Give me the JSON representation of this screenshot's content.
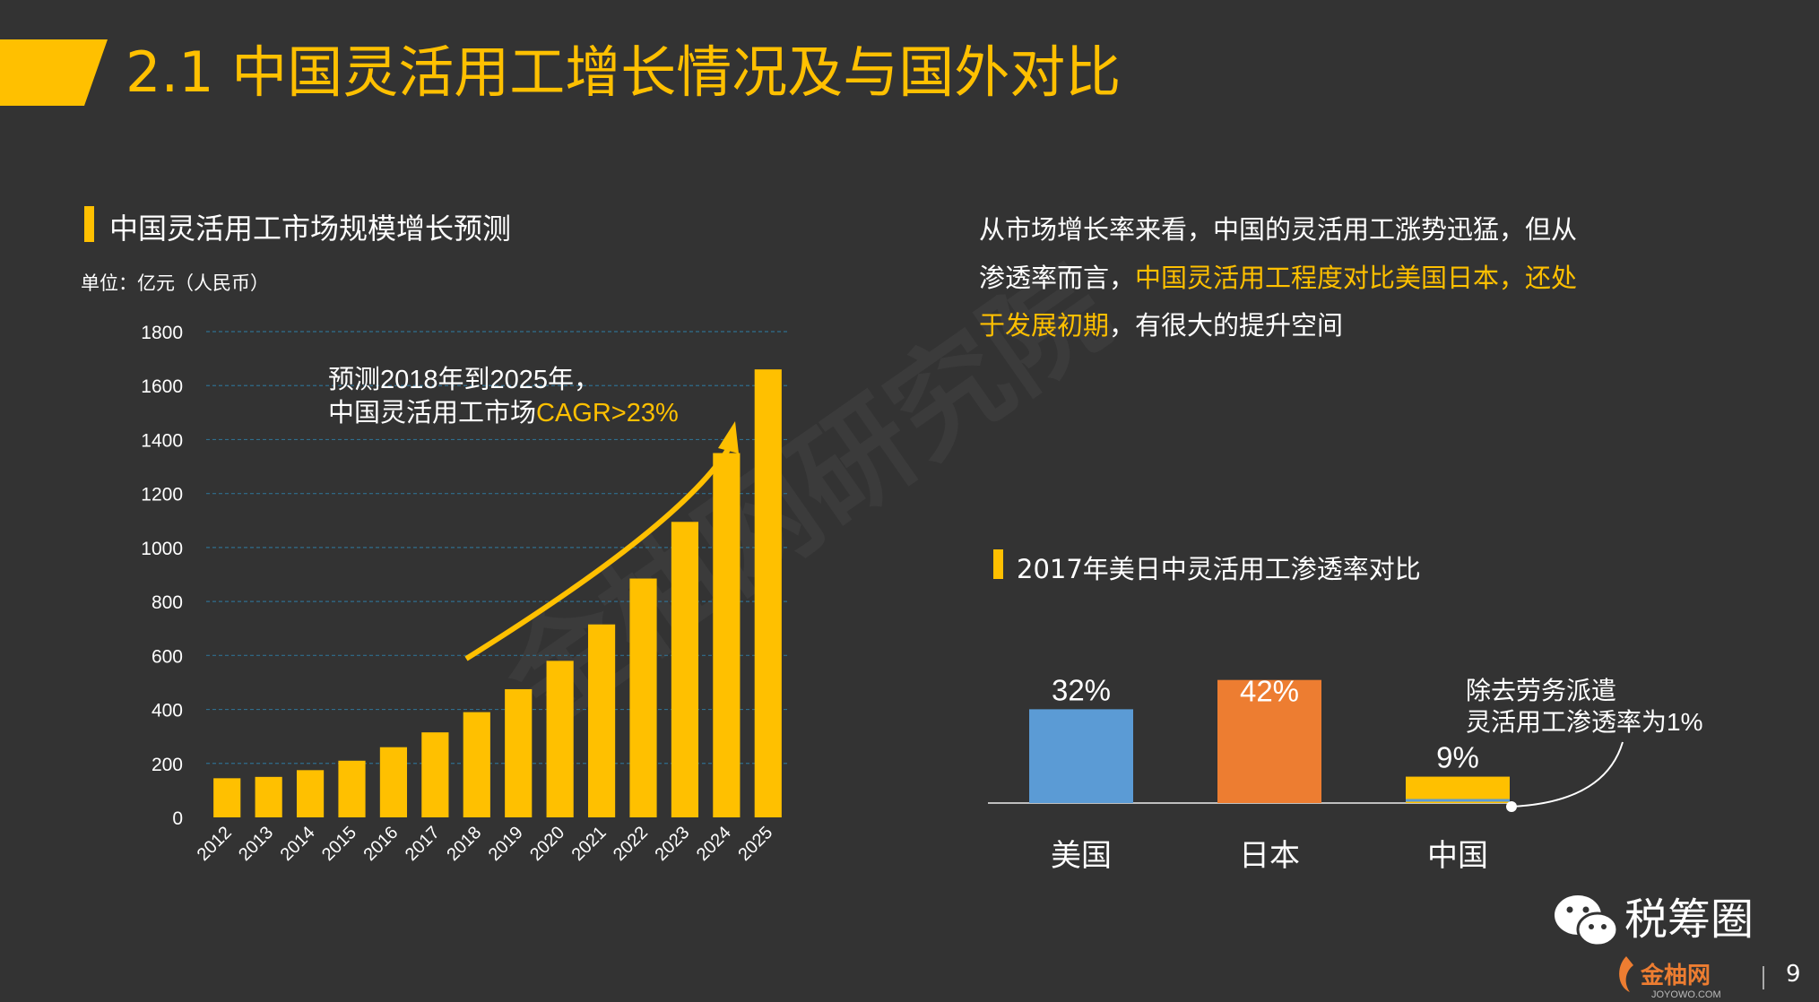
{
  "header": {
    "title": "2.1 中国灵活用工增长情况及与国外对比"
  },
  "left_section": {
    "title": "中国灵活用工市场规模增长预测",
    "unit": "单位：亿元（人民币）",
    "annotation_line1": "预测2018年到2025年，",
    "annotation_line2_prefix": "中国灵活用工市场",
    "annotation_line2_highlight": "CAGR>23%"
  },
  "right_text": {
    "line1": "从市场增长率来看，中国的灵活用工涨势迅猛，但从",
    "line2_prefix": "渗透率而言，",
    "line2_highlight": "中国灵活用工程度对比美国日本，还处",
    "line3_highlight": "于发展初期",
    "line3_suffix": "，有很大的提升空间"
  },
  "right_section": {
    "title": "2017年美日中灵活用工渗透率对比",
    "callout_line1": "除去劳务派遣",
    "callout_line2": "灵活用工渗透率为1%"
  },
  "watermark": "金柚网研究院",
  "brand": {
    "wechat_name": "税筹圈",
    "footer_logo_text": "金柚网",
    "footer_logo_sub": "JOYOWO.COM"
  },
  "page_number": "9",
  "colors": {
    "accent": "#FFC000",
    "background": "#333333",
    "usa": "#5B9BD5",
    "japan": "#ED7D31",
    "china": "#FFC000"
  },
  "chart_data": [
    {
      "type": "bar",
      "title": "中国灵活用工市场规模增长预测",
      "ylabel": "单位：亿元（人民币）",
      "categories": [
        "2012",
        "2013",
        "2014",
        "2015",
        "2016",
        "2017",
        "2018",
        "2019",
        "2020",
        "2021",
        "2022",
        "2023",
        "2024",
        "2025"
      ],
      "values": [
        145,
        150,
        175,
        210,
        260,
        315,
        390,
        475,
        580,
        715,
        885,
        1095,
        1350,
        1660
      ],
      "ylim": [
        0,
        1800
      ],
      "yticks": [
        0,
        200,
        400,
        600,
        800,
        1000,
        1200,
        1400,
        1600,
        1800
      ],
      "grid": true
    },
    {
      "type": "bar",
      "title": "2017年美日中灵活用工渗透率对比",
      "categories": [
        "美国",
        "日本",
        "中国"
      ],
      "values": [
        32,
        42,
        9
      ],
      "labels": [
        "32%",
        "42%",
        "9%"
      ],
      "colors": [
        "#5B9BD5",
        "#ED7D31",
        "#FFC000"
      ],
      "china_excluding_dispatch": 1
    }
  ]
}
